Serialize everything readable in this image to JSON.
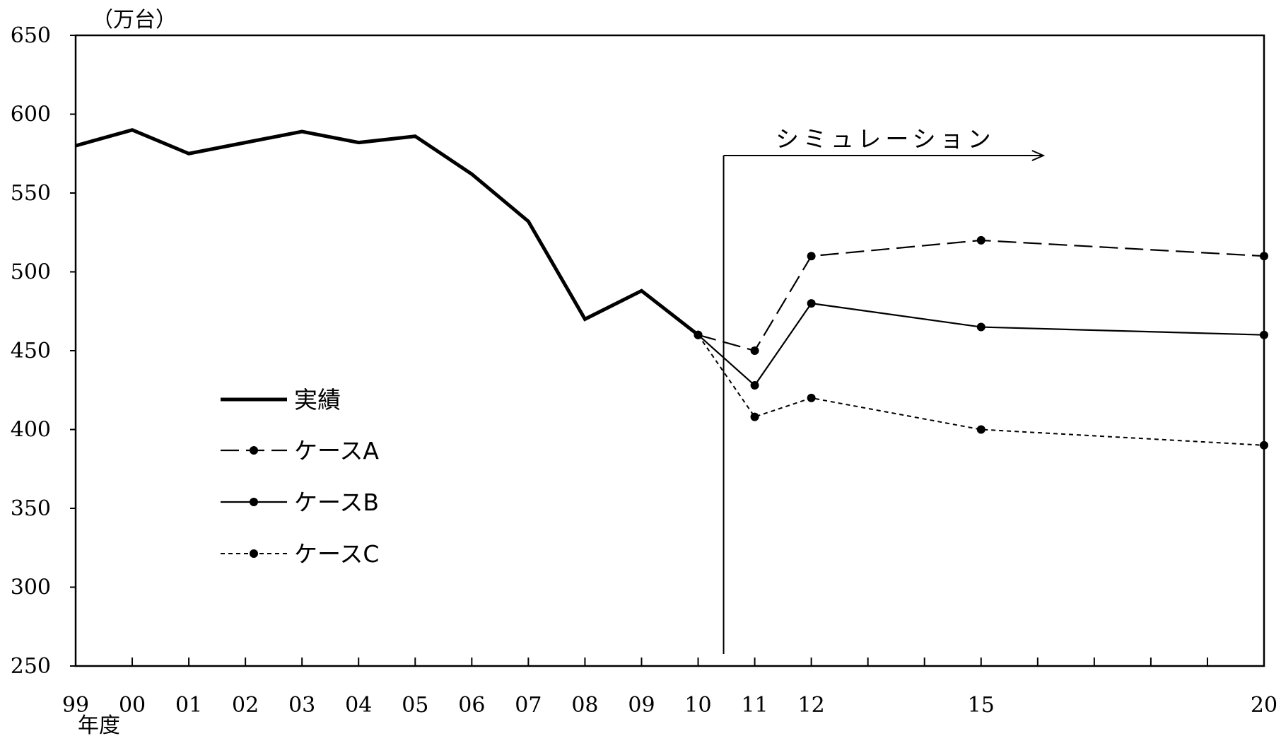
{
  "chart_data": {
    "type": "line",
    "unit_label": "（万台）",
    "xlabel": "年度",
    "ylim": [
      250,
      650
    ],
    "yticks": [
      250,
      300,
      350,
      400,
      450,
      500,
      550,
      600,
      650
    ],
    "x_index_range": [
      0,
      21
    ],
    "x_ticks": [
      {
        "label": "99",
        "i": 0
      },
      {
        "label": "00",
        "i": 1
      },
      {
        "label": "01",
        "i": 2
      },
      {
        "label": "02",
        "i": 3
      },
      {
        "label": "03",
        "i": 4
      },
      {
        "label": "04",
        "i": 5
      },
      {
        "label": "05",
        "i": 6
      },
      {
        "label": "06",
        "i": 7
      },
      {
        "label": "07",
        "i": 8
      },
      {
        "label": "08",
        "i": 9
      },
      {
        "label": "09",
        "i": 10
      },
      {
        "label": "10",
        "i": 11
      },
      {
        "label": "11",
        "i": 12
      },
      {
        "label": "12",
        "i": 13
      },
      {
        "label": "15",
        "i": 16
      },
      {
        "label": "20",
        "i": 21
      }
    ],
    "minor_tick_indices": [
      14,
      15,
      17,
      18,
      19,
      20
    ],
    "simulation_label": "シミュレーション",
    "simulation_start_index": 11.45,
    "simulation_arrow_end_index": 17.1,
    "series": [
      {
        "name": "実績",
        "style": "thick",
        "markers": false,
        "points": [
          {
            "i": 0,
            "v": 580
          },
          {
            "i": 1,
            "v": 590
          },
          {
            "i": 2,
            "v": 575
          },
          {
            "i": 3,
            "v": 582
          },
          {
            "i": 4,
            "v": 589
          },
          {
            "i": 5,
            "v": 582
          },
          {
            "i": 6,
            "v": 586
          },
          {
            "i": 7,
            "v": 562
          },
          {
            "i": 8,
            "v": 532
          },
          {
            "i": 9,
            "v": 470
          },
          {
            "i": 10,
            "v": 488
          },
          {
            "i": 11,
            "v": 460
          }
        ]
      },
      {
        "name": "ケースA",
        "style": "dashed",
        "markers": true,
        "points": [
          {
            "i": 11,
            "v": 460
          },
          {
            "i": 12,
            "v": 450
          },
          {
            "i": 13,
            "v": 510
          },
          {
            "i": 16,
            "v": 520
          },
          {
            "i": 21,
            "v": 510
          }
        ]
      },
      {
        "name": "ケースB",
        "style": "solid",
        "markers": true,
        "points": [
          {
            "i": 11,
            "v": 460
          },
          {
            "i": 12,
            "v": 428
          },
          {
            "i": 13,
            "v": 480
          },
          {
            "i": 16,
            "v": 465
          },
          {
            "i": 21,
            "v": 460
          }
        ]
      },
      {
        "name": "ケースC",
        "style": "dotted",
        "markers": true,
        "points": [
          {
            "i": 11,
            "v": 460
          },
          {
            "i": 12,
            "v": 408
          },
          {
            "i": 13,
            "v": 420
          },
          {
            "i": 16,
            "v": 400
          },
          {
            "i": 21,
            "v": 390
          }
        ]
      }
    ],
    "legend": [
      {
        "label": "実績",
        "style": "thick"
      },
      {
        "label": "ケースA",
        "style": "dashed"
      },
      {
        "label": "ケースB",
        "style": "solid"
      },
      {
        "label": "ケースC",
        "style": "dotted"
      }
    ]
  }
}
